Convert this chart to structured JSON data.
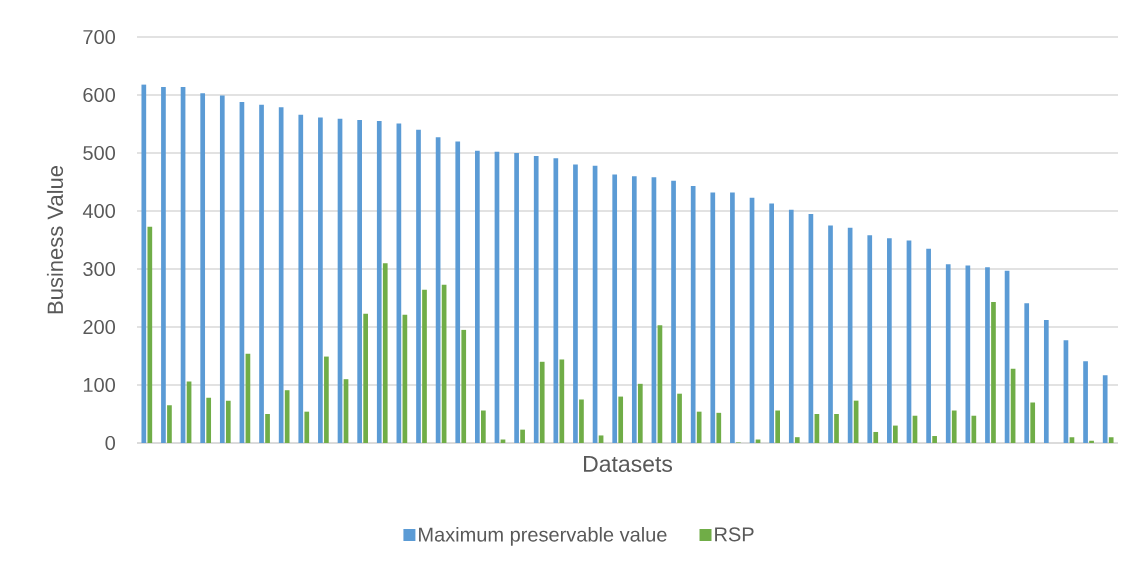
{
  "chart_data": {
    "type": "bar",
    "xlabel": "Datasets",
    "ylabel": "Business Value",
    "categories": [
      null,
      null,
      null,
      null,
      null,
      null,
      null,
      null,
      null,
      null,
      null,
      null,
      null,
      null,
      null,
      null,
      null,
      null,
      null,
      null,
      null,
      null,
      null,
      null,
      null,
      null,
      null,
      null,
      null,
      null,
      null,
      null,
      null,
      null,
      null,
      null,
      null,
      null,
      null,
      null,
      null,
      null,
      null,
      null,
      null,
      null,
      null,
      null,
      null,
      null
    ],
    "series": [
      {
        "name": "Maximum preservable value",
        "color": "#5b9bd5",
        "values": [
          618,
          614,
          614,
          603,
          599,
          588,
          583,
          579,
          566,
          561,
          559,
          557,
          555,
          551,
          540,
          527,
          520,
          504,
          502,
          500,
          495,
          491,
          480,
          478,
          463,
          460,
          458,
          452,
          443,
          432,
          432,
          423,
          413,
          402,
          395,
          375,
          371,
          358,
          353,
          349,
          335,
          308,
          306,
          303,
          297,
          241,
          212,
          177,
          141,
          117
        ]
      },
      {
        "name": "RSP",
        "color": "#70ad47",
        "values": [
          373,
          65,
          106,
          78,
          73,
          154,
          50,
          91,
          54,
          149,
          110,
          223,
          310,
          221,
          264,
          273,
          195,
          56,
          6,
          23,
          140,
          144,
          75,
          13,
          80,
          102,
          203,
          85,
          54,
          52,
          1,
          6,
          56,
          10,
          50,
          50,
          73,
          19,
          30,
          47,
          12,
          56,
          47,
          243,
          128,
          70,
          0,
          10,
          4,
          10
        ]
      }
    ],
    "ylim": [
      0,
      700
    ],
    "yticks": [
      0,
      100,
      200,
      300,
      400,
      500,
      600,
      700
    ],
    "grid": "y",
    "legend": "bottom"
  }
}
